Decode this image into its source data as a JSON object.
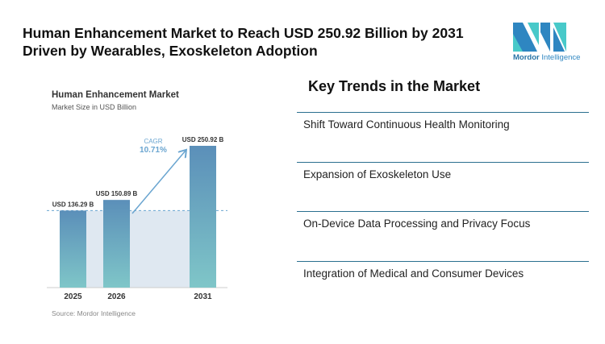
{
  "header": {
    "title_line1": "Human Enhancement Market to Reach USD 250.92 Billion by 2031",
    "title_line2": "Driven by Wearables, Exoskeleton Adoption"
  },
  "logo": {
    "text_bold": "Mordor",
    "text_rest": " Intelligence",
    "colors": [
      "#2e86c1",
      "#48c9c9"
    ]
  },
  "chart_data": {
    "type": "bar",
    "title": "Human Enhancement Market",
    "subtitle": "Market Size in USD Billion",
    "categories": [
      "2025",
      "2026",
      "2031"
    ],
    "values": [
      136.29,
      150.89,
      250.92
    ],
    "data_labels": [
      "USD 136.29 B",
      "USD 150.89 B",
      "USD 250.92 B"
    ],
    "annotation": {
      "label": "CAGR",
      "value": "10.71%"
    },
    "ylim": [
      0,
      260
    ],
    "grid": false,
    "colors": {
      "bar_top": "#5b8fb9",
      "bar_bottom": "#7fc6c8",
      "shade": "#dfe8f1",
      "accent": "#6aa5d0"
    },
    "source": "Source: Mordor Intelligence"
  },
  "trends": {
    "heading": "Key Trends in the Market",
    "items": [
      "Shift Toward Continuous Health Monitoring",
      "Expansion of Exoskeleton Use",
      "On-Device Data Processing and Privacy Focus",
      "Integration of Medical and Consumer Devices"
    ]
  }
}
